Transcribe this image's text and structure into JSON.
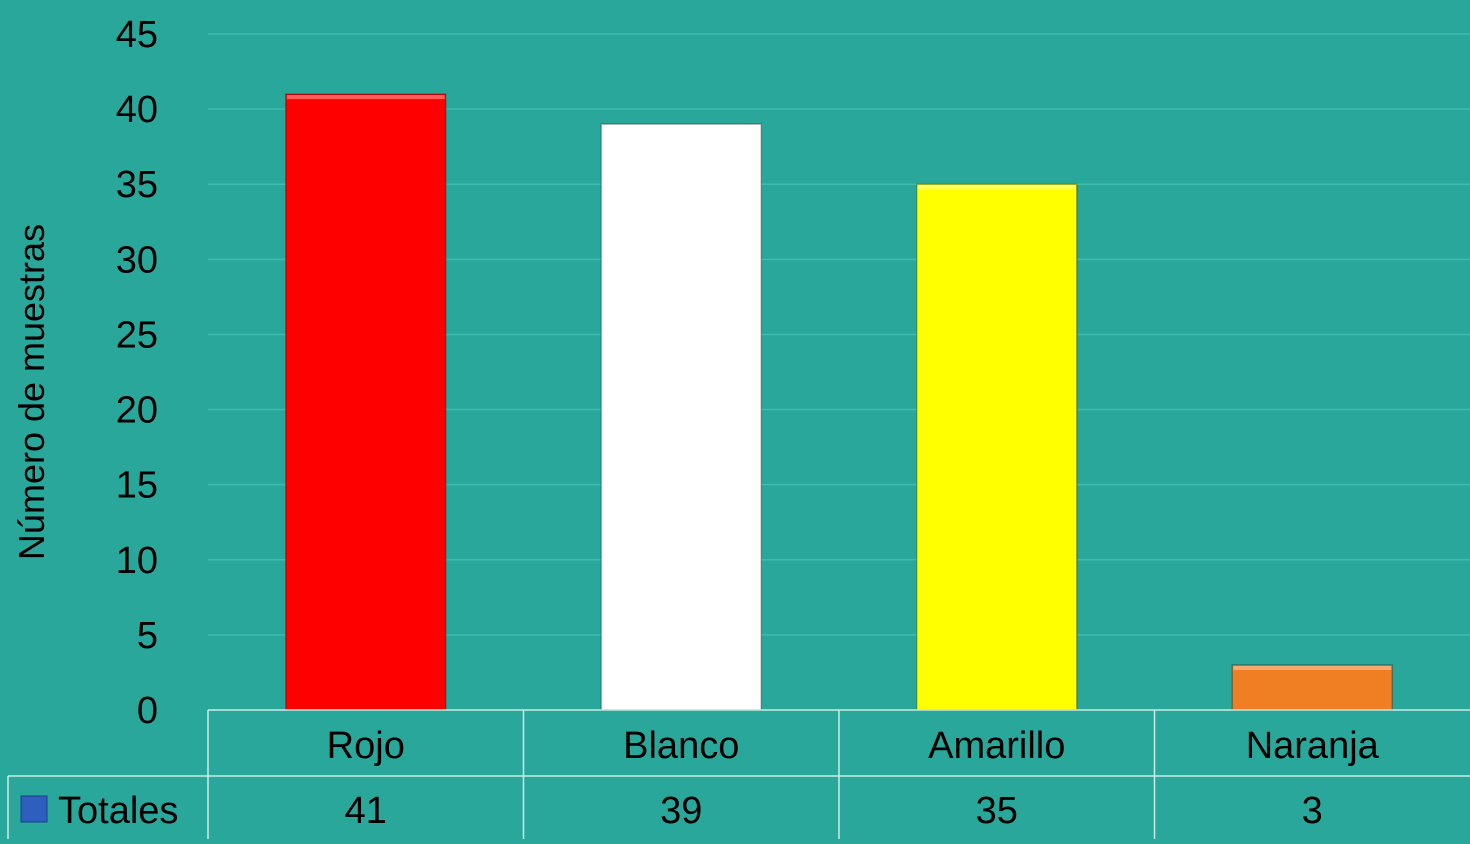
{
  "chart_data": {
    "type": "bar",
    "categories": [
      "Rojo",
      "Blanco",
      "Amarillo",
      "Naranja"
    ],
    "series": [
      {
        "name": "Totales",
        "values": [
          41,
          39,
          35,
          3
        ],
        "colors": [
          "#ff0000",
          "#ffffff",
          "#ffff00",
          "#f07f24"
        ]
      }
    ],
    "ylabel": "Número de muestras",
    "ylim": [
      0,
      45
    ],
    "yticks": [
      0,
      5,
      10,
      15,
      20,
      25,
      30,
      35,
      40,
      45
    ],
    "grid": true,
    "data_table": true,
    "legend_key_color": "#2e5fbf",
    "background_color": "#2aa79b",
    "gridline_color": "#3dbdb1"
  }
}
